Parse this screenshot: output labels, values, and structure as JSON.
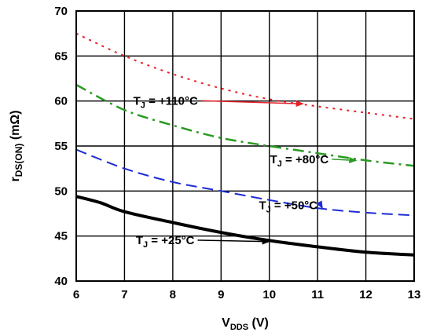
{
  "chart_data": {
    "type": "line",
    "xlabel": {
      "main": "V",
      "sub": "DDS",
      "unit": " (V)"
    },
    "ylabel": {
      "main": "r",
      "sub": "DS(ON)",
      "unit": " (mΩ)"
    },
    "xlim": [
      6,
      13
    ],
    "ylim": [
      40,
      70
    ],
    "x_ticks": [
      "6",
      "7",
      "8",
      "9",
      "10",
      "11",
      "12",
      "13"
    ],
    "y_ticks": [
      "40",
      "45",
      "50",
      "55",
      "60",
      "65",
      "70"
    ],
    "grid": true,
    "series": [
      {
        "name": "T_J = +110°C",
        "label_main": "T",
        "label_sub": "J",
        "label_rest": " = +110°C",
        "color": "#e8202a",
        "dash": "dot",
        "x": [
          6,
          7,
          8,
          9,
          10,
          11,
          12,
          13
        ],
        "y": [
          67.5,
          65.0,
          63.0,
          61.4,
          60.2,
          59.4,
          58.7,
          58.0
        ]
      },
      {
        "name": "T_J = +80°C",
        "label_main": "T",
        "label_sub": "J",
        "label_rest": " = +80°C",
        "color": "#2a9a22",
        "dash": "dashdot",
        "x": [
          6,
          7,
          8,
          9,
          10,
          11,
          12,
          13
        ],
        "y": [
          61.8,
          59.0,
          57.3,
          55.9,
          55.0,
          54.2,
          53.4,
          52.8
        ]
      },
      {
        "name": "T_J = +50°C",
        "label_main": "T",
        "label_sub": "J",
        "label_rest": " = +50°C",
        "color": "#1f2bd6",
        "dash": "dash",
        "x": [
          6,
          7,
          8,
          9,
          10,
          11,
          12,
          13
        ],
        "y": [
          54.6,
          52.5,
          51.0,
          50.0,
          49.0,
          48.1,
          47.6,
          47.3
        ]
      },
      {
        "name": "T_J = +25°C",
        "label_main": "T",
        "label_sub": "J",
        "label_rest": " = +25°C",
        "color": "#000000",
        "dash": "solid",
        "x": [
          6,
          6.5,
          7,
          8,
          9,
          10,
          11,
          12,
          13
        ],
        "y": [
          49.4,
          48.7,
          47.7,
          46.5,
          45.4,
          44.5,
          43.8,
          43.2,
          42.9
        ]
      }
    ],
    "annotations": [
      {
        "series": 0,
        "label_x": 8.52,
        "label_y": 59.6,
        "arrow_to_x": 10.7,
        "arrow_to_y": 59.6
      },
      {
        "series": 1,
        "label_x": 11.23,
        "label_y": 53.1,
        "arrow_to_x": 11.8,
        "arrow_to_y": 53.3
      },
      {
        "series": 2,
        "label_x": 11.0,
        "label_y": 48.0,
        "arrow_to_x": 11.1,
        "arrow_to_y": 48.0
      },
      {
        "series": 3,
        "label_x": 8.45,
        "label_y": 44.1,
        "arrow_to_x": 10.0,
        "arrow_to_y": 44.3
      }
    ]
  }
}
